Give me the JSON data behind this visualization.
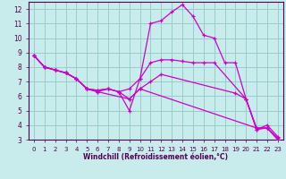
{
  "xlabel": "Windchill (Refroidissement éolien,°C)",
  "xlim": [
    -0.5,
    23.5
  ],
  "ylim": [
    3,
    12.5
  ],
  "xticks": [
    0,
    1,
    2,
    3,
    4,
    5,
    6,
    7,
    8,
    9,
    10,
    11,
    12,
    13,
    14,
    15,
    16,
    17,
    18,
    19,
    20,
    21,
    22,
    23
  ],
  "yticks": [
    3,
    4,
    5,
    6,
    7,
    8,
    9,
    10,
    11,
    12
  ],
  "bg_color": "#c8ecec",
  "line_color": "#cc00cc",
  "grid_color": "#99cccc",
  "lines": [
    {
      "x": [
        0,
        1,
        2,
        3,
        4,
        5,
        6,
        7,
        8,
        9,
        10,
        11,
        12,
        13,
        14,
        15,
        16,
        17,
        18,
        19,
        20,
        21,
        22,
        23
      ],
      "y": [
        8.8,
        8.0,
        7.8,
        7.6,
        7.2,
        6.5,
        6.4,
        6.5,
        6.3,
        5.0,
        7.2,
        11.0,
        11.2,
        11.8,
        12.3,
        11.5,
        10.2,
        10.0,
        8.3,
        8.3,
        5.8,
        3.7,
        4.0,
        3.2
      ]
    },
    {
      "x": [
        0,
        1,
        2,
        3,
        4,
        5,
        6,
        7,
        8,
        9,
        10,
        11,
        12,
        13,
        14,
        15,
        16,
        17,
        20,
        21,
        22,
        23
      ],
      "y": [
        8.8,
        8.0,
        7.8,
        7.6,
        7.2,
        6.5,
        6.4,
        6.5,
        6.3,
        6.5,
        7.2,
        8.3,
        8.5,
        8.5,
        8.4,
        8.3,
        8.3,
        8.3,
        5.8,
        3.7,
        3.8,
        3.1
      ]
    },
    {
      "x": [
        0,
        1,
        2,
        3,
        4,
        5,
        6,
        7,
        8,
        9,
        10,
        11,
        12,
        19,
        20,
        21,
        22,
        23
      ],
      "y": [
        8.8,
        8.0,
        7.8,
        7.6,
        7.2,
        6.5,
        6.3,
        6.5,
        6.3,
        5.8,
        6.5,
        7.0,
        7.5,
        6.2,
        5.8,
        3.8,
        3.8,
        3.0
      ]
    },
    {
      "x": [
        0,
        1,
        2,
        3,
        4,
        5,
        6,
        9,
        10,
        21,
        22,
        23
      ],
      "y": [
        8.8,
        8.0,
        7.8,
        7.6,
        7.2,
        6.5,
        6.3,
        5.8,
        6.5,
        3.8,
        3.8,
        3.0
      ]
    }
  ]
}
